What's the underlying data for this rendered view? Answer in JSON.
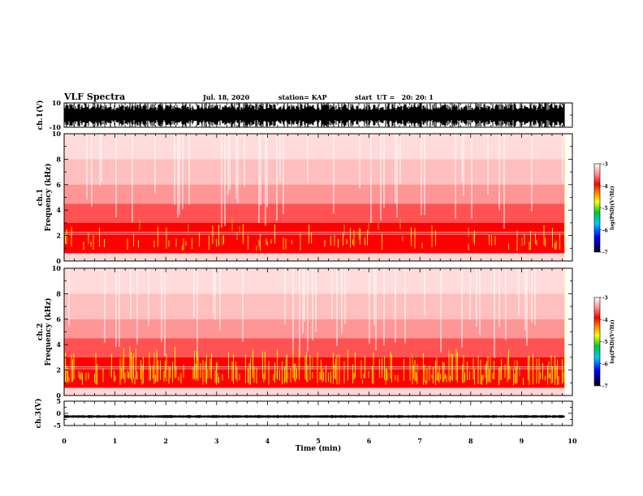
{
  "header": {
    "title": "VLF Spectra",
    "date": "Jul. 18, 2020",
    "station": "station= KAP",
    "start": "start  UT =   20: 20: 1"
  },
  "chart_data": [
    {
      "type": "line",
      "panel": "ch1-waveform",
      "ylabel": "ch.1(V)",
      "ylim": [
        -10,
        10
      ],
      "yticks": [
        "10",
        "-10"
      ],
      "xlim": [
        0,
        10
      ],
      "description_of_signal": "dense noise-like waveform spanning roughly -9 V to +9 V",
      "x_end": 9.85
    },
    {
      "type": "heatmap",
      "panel": "ch1-spectrogram",
      "ylabel": "ch.1 Frequency (kHz)",
      "ylabel_lines": [
        "ch.1",
        "Frequency  (kHz)"
      ],
      "ylim": [
        0,
        10
      ],
      "yticks": [
        "0",
        "2",
        "4",
        "6",
        "8",
        "10"
      ],
      "xlim": [
        0,
        10
      ],
      "x_end": 9.85,
      "colorbar": {
        "label": "log(PSD)(V²/Hz)",
        "range": [
          -7,
          -3
        ],
        "ticks": [
          "-3",
          "-4",
          "-5",
          "-6",
          "-7"
        ]
      }
    },
    {
      "type": "heatmap",
      "panel": "ch2-spectrogram",
      "ylabel": "ch.2 Frequency (kHz)",
      "ylabel_lines": [
        "ch.2",
        "Frequency  (kHz)"
      ],
      "ylim": [
        0,
        10
      ],
      "yticks": [
        "0",
        "2",
        "4",
        "6",
        "8",
        "10"
      ],
      "xlim": [
        0,
        10
      ],
      "x_end": 9.85,
      "colorbar": {
        "label": "log(PSD)(V²/Hz)",
        "range": [
          -7,
          -3
        ],
        "ticks": [
          "-3",
          "-4",
          "-5",
          "-6",
          "-7"
        ]
      }
    },
    {
      "type": "line",
      "panel": "ch3-waveform",
      "ylabel": "ch.3(V)",
      "ylim": [
        -5,
        5
      ],
      "yticks": [
        "5",
        "0",
        "-5"
      ],
      "xlim": [
        0,
        10
      ],
      "x_end": 9.85,
      "xlabel": "Time  (min)",
      "xticks": [
        "0",
        "1",
        "2",
        "3",
        "4",
        "5",
        "6",
        "7",
        "8",
        "9",
        "10"
      ]
    }
  ]
}
